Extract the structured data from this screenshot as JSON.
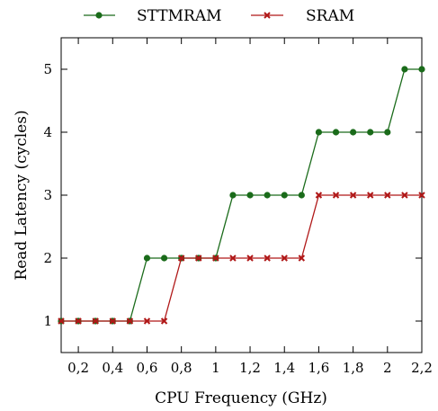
{
  "chart_data": {
    "type": "line",
    "title": "",
    "xlabel": "CPU Frequency (GHz)",
    "ylabel": "Read Latency (cycles)",
    "xlim": [
      0.1,
      2.2
    ],
    "ylim": [
      0.5,
      5.5
    ],
    "xticks": [
      0.2,
      0.4,
      0.6,
      0.8,
      1,
      1.2,
      1.4,
      1.6,
      1.8,
      2,
      2.2
    ],
    "xtick_labels": [
      "0,2",
      "0,4",
      "0,6",
      "0,8",
      "1",
      "1,2",
      "1,4",
      "1,6",
      "1,8",
      "2",
      "2,2"
    ],
    "yticks": [
      1,
      2,
      3,
      4,
      5
    ],
    "ytick_labels": [
      "1",
      "2",
      "3",
      "4",
      "5"
    ],
    "grid": false,
    "legend_position": "top",
    "x": [
      0.1,
      0.2,
      0.3,
      0.4,
      0.5,
      0.6,
      0.7,
      0.8,
      0.9,
      1.0,
      1.1,
      1.2,
      1.3,
      1.4,
      1.5,
      1.6,
      1.7,
      1.8,
      1.9,
      2.0,
      2.1,
      2.2
    ],
    "series": [
      {
        "name": "STTMRAM",
        "color": "#1a6b1a",
        "marker": "circle",
        "values": [
          1,
          1,
          1,
          1,
          1,
          2,
          2,
          2,
          2,
          2,
          3,
          3,
          3,
          3,
          3,
          4,
          4,
          4,
          4,
          4,
          5,
          5
        ]
      },
      {
        "name": "SRAM",
        "color": "#b01818",
        "marker": "x",
        "values": [
          1,
          1,
          1,
          1,
          1,
          1,
          1,
          2,
          2,
          2,
          2,
          2,
          2,
          2,
          2,
          3,
          3,
          3,
          3,
          3,
          3,
          3
        ]
      }
    ]
  }
}
